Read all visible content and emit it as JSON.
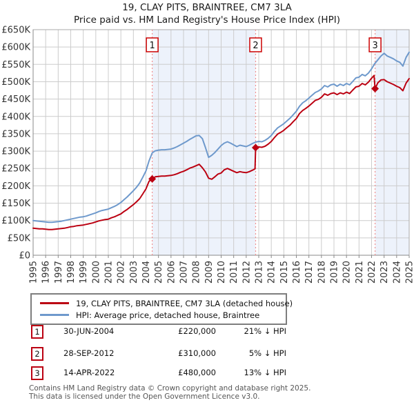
{
  "title": {
    "line1": "19, CLAY PITS, BRAINTREE, CM7 3LA",
    "line2": "Price paid vs. HM Land Registry's House Price Index (HPI)"
  },
  "chart_data": {
    "type": "line",
    "title": "19, CLAY PITS, BRAINTREE, CM7 3LA — Price paid vs. HPI",
    "unit": "GBP thousands",
    "x_range": [
      1995,
      2025
    ],
    "ylim_thousands": [
      0,
      650
    ],
    "y_tick_step_thousands": 50,
    "y_tick_labels": [
      "£0",
      "£50K",
      "£100K",
      "£150K",
      "£200K",
      "£250K",
      "£300K",
      "£350K",
      "£400K",
      "£450K",
      "£500K",
      "£550K",
      "£600K",
      "£650K"
    ],
    "x_tick_labels": [
      "1995",
      "1996",
      "1997",
      "1998",
      "1999",
      "2000",
      "2001",
      "2002",
      "2003",
      "2004",
      "2005",
      "2006",
      "2007",
      "2008",
      "2009",
      "2010",
      "2011",
      "2012",
      "2013",
      "2014",
      "2015",
      "2016",
      "2017",
      "2018",
      "2019",
      "2020",
      "2021",
      "2022",
      "2023",
      "2024",
      "2025"
    ],
    "grid": true,
    "legend_position": "bottom",
    "grid_color": "#cccccc",
    "shade_color": "#edf2fb",
    "dash_color": "#f09090",
    "shaded_periods": [
      [
        2004.5,
        2012.75
      ],
      [
        2022.28,
        2025.0
      ]
    ],
    "series": [
      {
        "id": "price-paid",
        "name": "19, CLAY PITS, BRAINTREE, CM7 3LA (detached house)",
        "color": "#bb0011",
        "x": [
          1995,
          1995.25,
          1995.5,
          1995.75,
          1996,
          1996.25,
          1996.5,
          1996.75,
          1997,
          1997.25,
          1997.5,
          1997.75,
          1998,
          1998.25,
          1998.5,
          1998.75,
          1999,
          1999.25,
          1999.5,
          1999.75,
          2000,
          2000.25,
          2000.5,
          2000.75,
          2001,
          2001.25,
          2001.5,
          2001.75,
          2002,
          2002.25,
          2002.5,
          2002.75,
          2003,
          2003.25,
          2003.5,
          2003.75,
          2004,
          2004.25,
          2004.5,
          2004.75,
          2005,
          2005.25,
          2005.5,
          2005.75,
          2006,
          2006.25,
          2006.5,
          2006.75,
          2007,
          2007.25,
          2007.5,
          2007.75,
          2008,
          2008.25,
          2008.5,
          2008.75,
          2009,
          2009.25,
          2009.5,
          2009.75,
          2010,
          2010.25,
          2010.5,
          2010.75,
          2011,
          2011.25,
          2011.5,
          2011.75,
          2012,
          2012.25,
          2012.5,
          2012.7,
          2012.75,
          2013,
          2013.25,
          2013.5,
          2013.75,
          2014,
          2014.25,
          2014.5,
          2014.75,
          2015,
          2015.25,
          2015.5,
          2015.75,
          2016,
          2016.25,
          2016.5,
          2016.75,
          2017,
          2017.25,
          2017.5,
          2017.75,
          2018,
          2018.25,
          2018.5,
          2018.75,
          2019,
          2019.25,
          2019.5,
          2019.75,
          2020,
          2020.25,
          2020.5,
          2020.75,
          2021,
          2021.25,
          2021.5,
          2021.75,
          2022,
          2022.2,
          2022.28,
          2022.5,
          2022.75,
          2023,
          2023.25,
          2023.5,
          2023.75,
          2024,
          2024.25,
          2024.5,
          2024.75,
          2025
        ],
        "values_thousands": [
          78,
          77,
          76,
          76,
          75,
          74,
          74,
          75,
          76,
          77,
          78,
          80,
          82,
          83,
          85,
          86,
          87,
          89,
          91,
          93,
          96,
          99,
          101,
          103,
          104,
          108,
          111,
          115,
          119,
          126,
          132,
          139,
          146,
          154,
          163,
          177,
          191,
          213,
          220,
          226,
          227,
          228,
          228,
          229,
          230,
          232,
          235,
          239,
          242,
          246,
          251,
          254,
          258,
          262,
          252,
          240,
          222,
          219,
          226,
          234,
          237,
          246,
          250,
          246,
          242,
          238,
          241,
          239,
          238,
          241,
          245,
          249,
          310,
          312,
          311,
          314,
          320,
          328,
          339,
          349,
          354,
          360,
          368,
          375,
          385,
          394,
          408,
          417,
          423,
          430,
          438,
          446,
          449,
          455,
          465,
          461,
          466,
          468,
          463,
          468,
          465,
          470,
          466,
          476,
          485,
          487,
          495,
          491,
          499,
          510,
          518,
          480,
          497,
          505,
          506,
          500,
          496,
          492,
          487,
          483,
          474,
          496,
          509
        ]
      },
      {
        "id": "hpi",
        "name": "HPI: Average price, detached house, Braintree",
        "color": "#6e99cc",
        "x_start": 1995,
        "x_step": 0.25,
        "values_thousands": [
          100,
          99,
          98,
          97,
          96,
          95,
          95,
          96,
          97,
          98,
          100,
          102,
          104,
          106,
          108,
          110,
          111,
          113,
          116,
          119,
          122,
          126,
          129,
          131,
          133,
          137,
          141,
          146,
          152,
          160,
          168,
          177,
          186,
          196,
          208,
          225,
          243,
          272,
          295,
          301,
          303,
          304,
          304,
          305,
          306,
          309,
          313,
          318,
          323,
          328,
          334,
          339,
          344,
          345,
          336,
          310,
          282,
          288,
          296,
          306,
          316,
          323,
          327,
          323,
          318,
          313,
          317,
          315,
          313,
          317,
          322,
          326,
          328,
          327,
          331,
          337,
          345,
          357,
          367,
          373,
          379,
          387,
          395,
          405,
          415,
          429,
          439,
          445,
          453,
          461,
          469,
          473,
          479,
          489,
          485,
          491,
          493,
          487,
          493,
          489,
          495,
          491,
          501,
          511,
          513,
          521,
          517,
          525,
          537,
          552,
          563,
          574,
          582,
          574,
          570,
          566,
          560,
          556,
          545,
          570,
          585
        ]
      }
    ],
    "sale_markers": [
      {
        "n": "1",
        "x": 2004.5,
        "value_thousands": 220
      },
      {
        "n": "2",
        "x": 2012.75,
        "value_thousands": 310
      },
      {
        "n": "3",
        "x": 2022.28,
        "value_thousands": 480
      }
    ]
  },
  "legend": {
    "items": [
      {
        "label": "19, CLAY PITS, BRAINTREE, CM7 3LA (detached house)",
        "color": "#bb0011"
      },
      {
        "label": "HPI: Average price, detached house, Braintree",
        "color": "#6e99cc"
      }
    ]
  },
  "transactions": [
    {
      "num": "1",
      "date": "30-JUN-2004",
      "price": "£220,000",
      "vs_hpi": "21% ↓ HPI"
    },
    {
      "num": "2",
      "date": "28-SEP-2012",
      "price": "£310,000",
      "vs_hpi": "5% ↓ HPI"
    },
    {
      "num": "3",
      "date": "14-APR-2022",
      "price": "£480,000",
      "vs_hpi": "13% ↓ HPI"
    }
  ],
  "footer": {
    "line1": "Contains HM Land Registry data © Crown copyright and database right 2025.",
    "line2": "This data is licensed under the Open Government Licence v3.0."
  }
}
